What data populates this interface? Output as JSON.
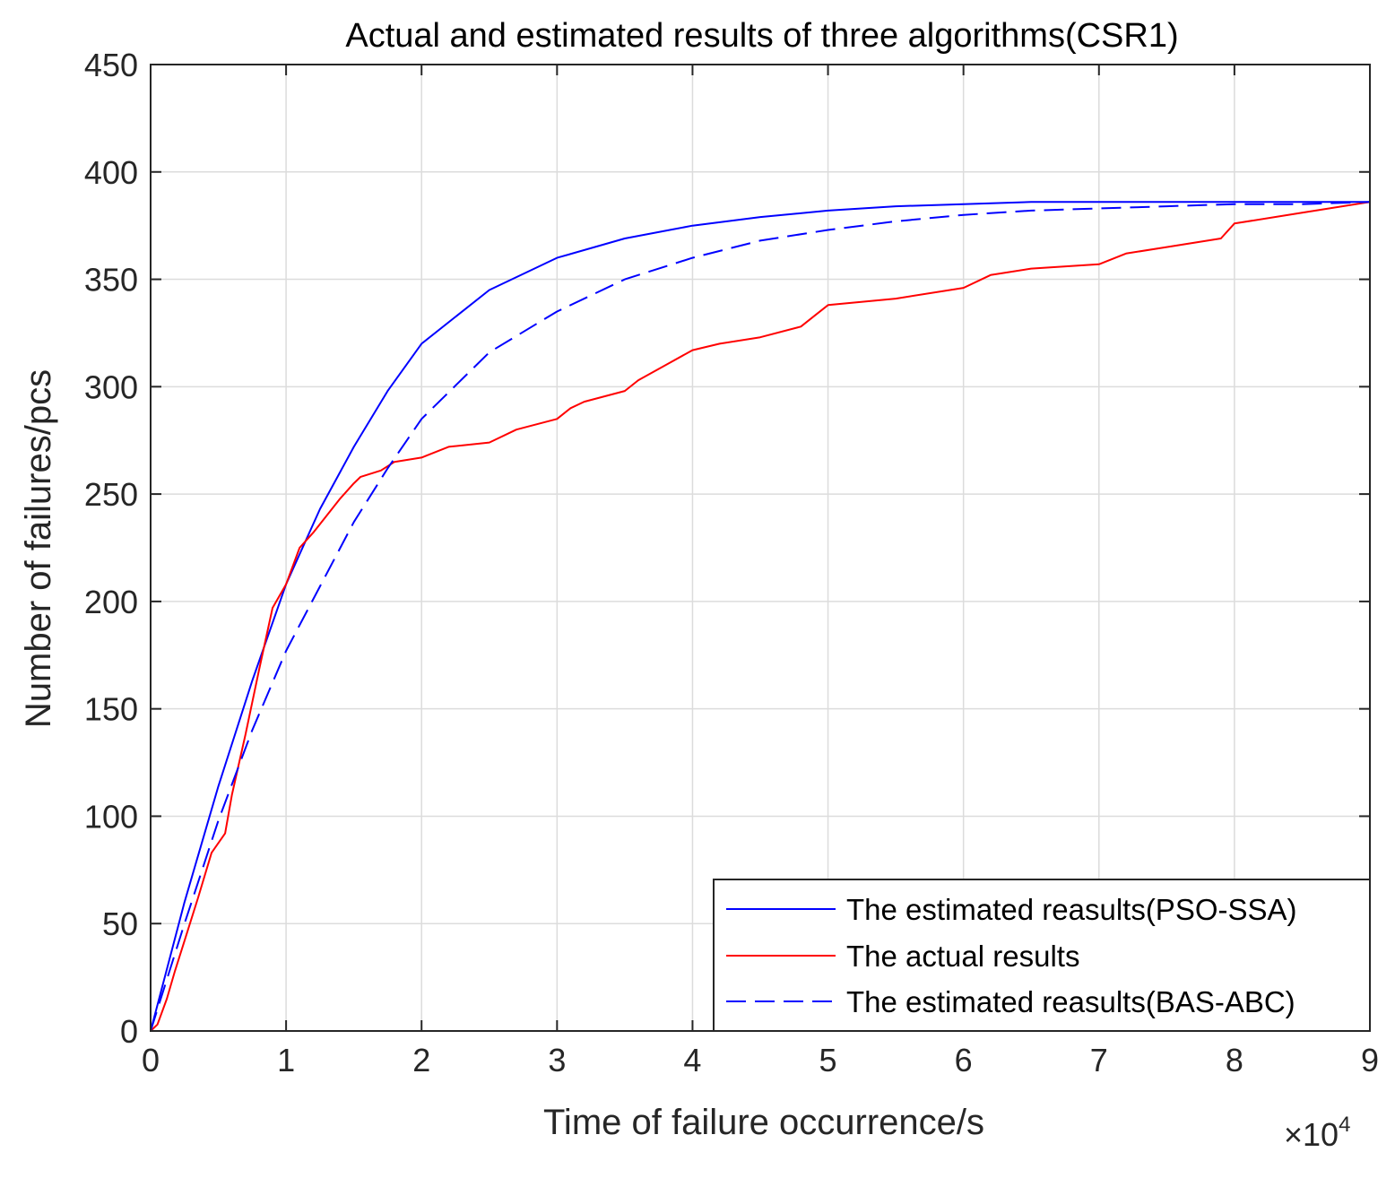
{
  "chart_data": {
    "type": "line",
    "title": "Actual and estimated results of three algorithms(CSR1)",
    "xlabel": "Time of failure occurrence/s",
    "ylabel": "Number of failures/pcs",
    "x_exponent_label": "×10",
    "x_exponent_power": "4",
    "xlim": [
      0,
      9
    ],
    "ylim": [
      0,
      450
    ],
    "xticks": [
      0,
      1,
      2,
      3,
      4,
      5,
      6,
      7,
      8,
      9
    ],
    "yticks": [
      0,
      50,
      100,
      150,
      200,
      250,
      300,
      350,
      400,
      450
    ],
    "grid": true,
    "legend_position": "bottom-right",
    "series": [
      {
        "name": "The estimated reasults(PSO-SSA)",
        "color": "#0000ff",
        "style": "solid",
        "x": [
          0,
          0.25,
          0.5,
          0.75,
          1,
          1.25,
          1.5,
          1.75,
          2,
          2.5,
          3,
          3.5,
          4,
          4.5,
          5,
          5.5,
          6,
          6.5,
          7,
          7.5,
          8,
          8.5,
          9
        ],
        "y": [
          0,
          60,
          114,
          163,
          208,
          243,
          272,
          298,
          320,
          345,
          360,
          369,
          375,
          379,
          382,
          384,
          385,
          386,
          386,
          386,
          386,
          386,
          386
        ]
      },
      {
        "name": "The actual results",
        "color": "#ff0000",
        "style": "solid",
        "x": [
          0,
          0.05,
          0.12,
          0.18,
          0.25,
          0.35,
          0.45,
          0.55,
          0.6,
          0.7,
          0.8,
          0.9,
          1,
          1.1,
          1.2,
          1.3,
          1.4,
          1.5,
          1.55,
          1.7,
          1.8,
          2,
          2.2,
          2.5,
          2.7,
          3,
          3.1,
          3.2,
          3.5,
          3.6,
          3.8,
          4,
          4.2,
          4.5,
          4.8,
          4.9,
          5,
          5.5,
          6,
          6.2,
          6.5,
          7,
          7.2,
          7.5,
          7.9,
          8,
          8.5,
          9
        ],
        "y": [
          0,
          3,
          15,
          28,
          42,
          62,
          83,
          92,
          110,
          138,
          168,
          197,
          208,
          225,
          232,
          240,
          248,
          255,
          258,
          261,
          265,
          267,
          272,
          274,
          280,
          285,
          290,
          293,
          298,
          303,
          310,
          317,
          320,
          323,
          328,
          333,
          338,
          341,
          346,
          352,
          355,
          357,
          362,
          365,
          369,
          376,
          381,
          386
        ]
      },
      {
        "name": "The estimated reasults(BAS-ABC)",
        "color": "#0000ff",
        "style": "dashed",
        "x": [
          0,
          0.25,
          0.5,
          0.75,
          1,
          1.25,
          1.5,
          1.75,
          2,
          2.5,
          3,
          3.5,
          4,
          4.5,
          5,
          5.5,
          6,
          6.5,
          7,
          7.5,
          8,
          8.5,
          9
        ],
        "y": [
          0,
          50,
          98,
          140,
          177,
          207,
          237,
          262,
          285,
          316,
          335,
          350,
          360,
          368,
          373,
          377,
          380,
          382,
          383,
          384,
          385,
          385,
          386
        ]
      }
    ]
  }
}
